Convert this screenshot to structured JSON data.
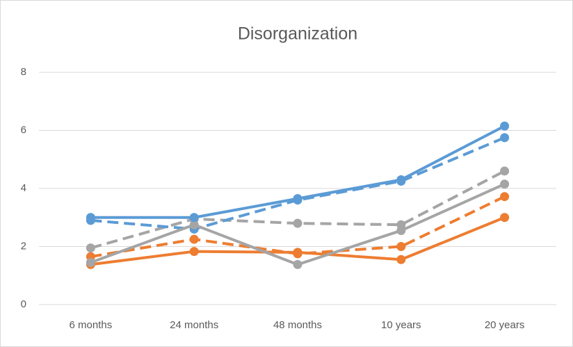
{
  "chart_data": {
    "type": "line",
    "title": "Disorganization",
    "categories": [
      "6 months",
      "24 months",
      "48 months",
      "10 years",
      "20 years"
    ],
    "ylim": [
      0,
      8
    ],
    "yticks": [
      0,
      2,
      4,
      6,
      8
    ],
    "grid": true,
    "series": [
      {
        "color": "#ed7d31",
        "dashed": true,
        "values": [
          1.65,
          2.25,
          1.75,
          2.0,
          3.72
        ]
      },
      {
        "color": "#a5a5a5",
        "dashed": true,
        "values": [
          1.95,
          2.95,
          2.8,
          2.75,
          4.6
        ]
      },
      {
        "color": "#5b9bd5",
        "dashed": true,
        "values": [
          2.9,
          2.6,
          3.6,
          4.25,
          5.75
        ]
      },
      {
        "color": "#ed7d31",
        "dashed": false,
        "values": [
          1.38,
          1.83,
          1.8,
          1.55,
          3.0
        ]
      },
      {
        "color": "#a5a5a5",
        "dashed": false,
        "values": [
          1.45,
          2.75,
          1.38,
          2.55,
          4.15
        ]
      },
      {
        "color": "#5b9bd5",
        "dashed": false,
        "values": [
          3.0,
          3.0,
          3.65,
          4.3,
          6.15
        ]
      }
    ]
  }
}
